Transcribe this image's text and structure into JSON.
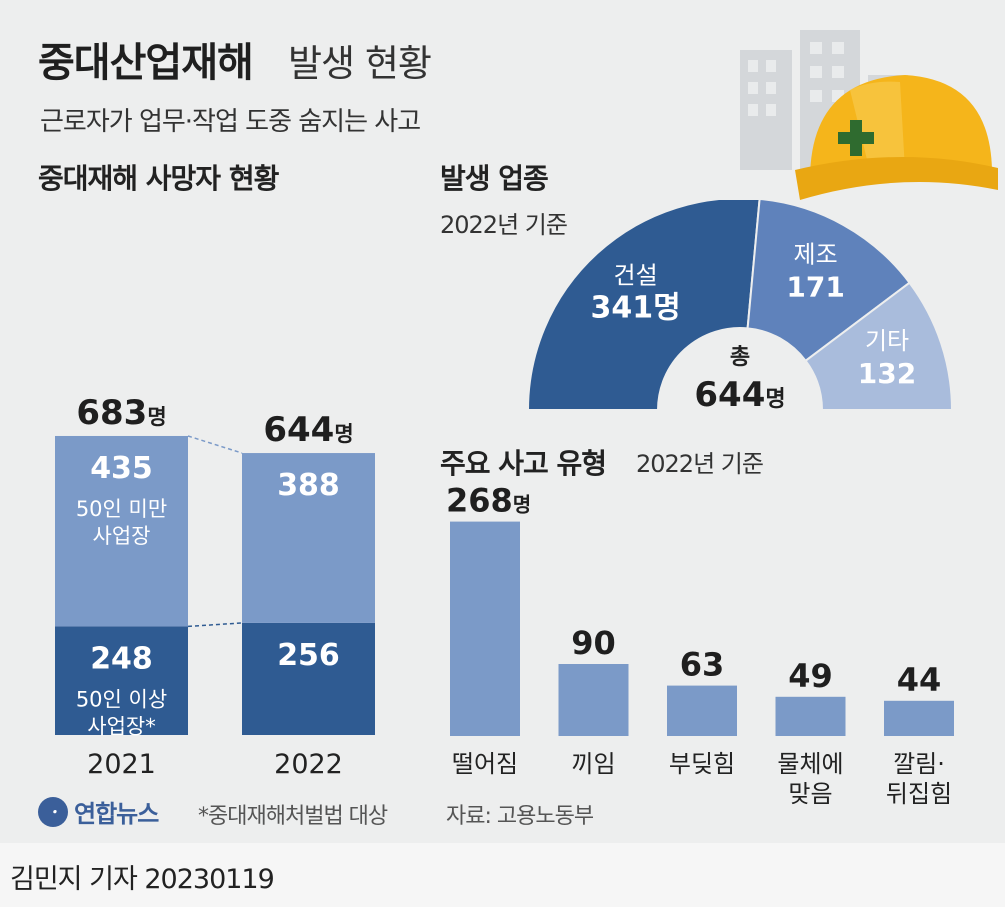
{
  "header": {
    "title_bold": "중대산업재해",
    "title_rest": "발생 현황",
    "subtitle": "근로자가 업무·작업 도중 숨지는 사고"
  },
  "colors": {
    "light_blue": "#7b9ac8",
    "dark_blue": "#2f5b92",
    "pale_blue": "#a9bcdc",
    "mid_blue": "#5f82bb",
    "bar_blue": "#7b9ac8",
    "background": "#edeeee"
  },
  "icons": {
    "decoration": "hardhat-and-buildings-icon"
  },
  "chart_data": [
    {
      "type": "bar",
      "title": "중대재해 사망자 현황",
      "categories": [
        "2021",
        "2022"
      ],
      "totals": [
        683,
        644
      ],
      "total_unit": "명",
      "series": [
        {
          "name": "50인 이상 사업장*",
          "values": [
            248,
            256
          ]
        },
        {
          "name": "50인 미만 사업장",
          "values": [
            435,
            388
          ]
        }
      ]
    },
    {
      "type": "pie",
      "title": "발생 업종",
      "subtitle": "2022년 기준",
      "center_label": "총",
      "center_value": "644",
      "unit": "명",
      "slices": [
        {
          "label": "건설",
          "value": 341,
          "display": "341명"
        },
        {
          "label": "제조",
          "value": 171,
          "display": "171"
        },
        {
          "label": "기타",
          "value": 132,
          "display": "132"
        }
      ]
    },
    {
      "type": "bar",
      "title": "주요 사고 유형",
      "subtitle": "2022년 기준",
      "unit": "명",
      "categories": [
        "떨어짐",
        "끼임",
        "부딪힘",
        "물체에 맞음",
        "깔림· 뒤집힘"
      ],
      "category_lines": [
        [
          "떨어짐"
        ],
        [
          "끼임"
        ],
        [
          "부딪힘"
        ],
        [
          "물체에",
          "맞음"
        ],
        [
          "깔림·",
          "뒤집힘"
        ]
      ],
      "values": [
        268,
        90,
        63,
        49,
        44
      ]
    }
  ],
  "footer": {
    "logo": "연합뉴스",
    "footnote": "*중대재해처벌법 대상",
    "source": "자료: 고용노동부",
    "credit": "김민지 기자  20230119"
  }
}
